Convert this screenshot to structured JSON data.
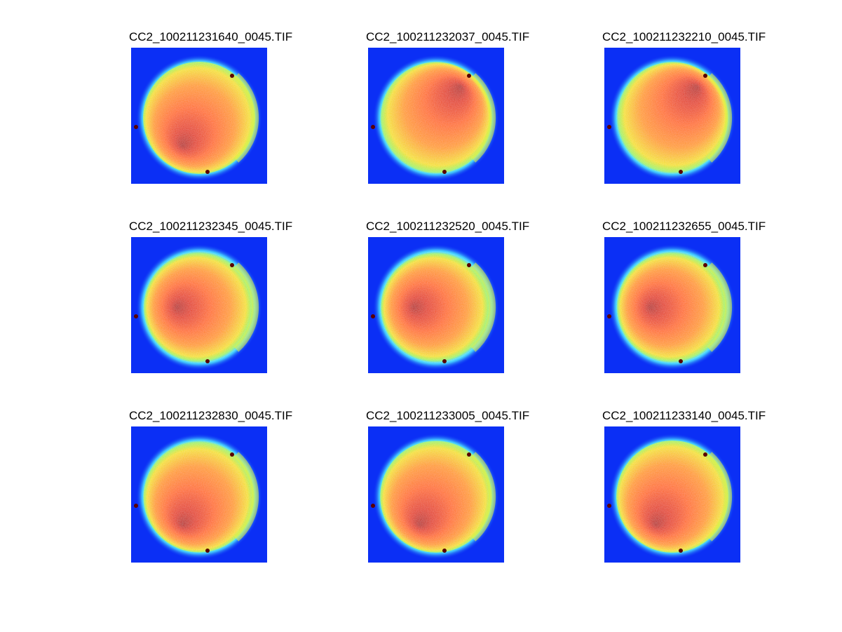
{
  "figure": {
    "background_color": "#0b2ff5",
    "colormap": "jet",
    "panels": [
      {
        "title": "CC2_100211231640_0045.TIF",
        "hot_side": "left-bottom",
        "intensity": 0.62
      },
      {
        "title": "CC2_100211232037_0045.TIF",
        "hot_side": "top-right",
        "intensity": 0.72
      },
      {
        "title": "CC2_100211232210_0045.TIF",
        "hot_side": "top-right",
        "intensity": 0.74
      },
      {
        "title": "CC2_100211232345_0045.TIF",
        "hot_side": "left",
        "intensity": 0.82
      },
      {
        "title": "CC2_100211232520_0045.TIF",
        "hot_side": "left",
        "intensity": 0.84
      },
      {
        "title": "CC2_100211232655_0045.TIF",
        "hot_side": "left",
        "intensity": 0.82
      },
      {
        "title": "CC2_100211232830_0045.TIF",
        "hot_side": "left-bottom",
        "intensity": 0.74
      },
      {
        "title": "CC2_100211233005_0045.TIF",
        "hot_side": "left-bottom",
        "intensity": 0.68
      },
      {
        "title": "CC2_100211233140_0045.TIF",
        "hot_side": "left-bottom",
        "intensity": 0.62
      }
    ]
  }
}
